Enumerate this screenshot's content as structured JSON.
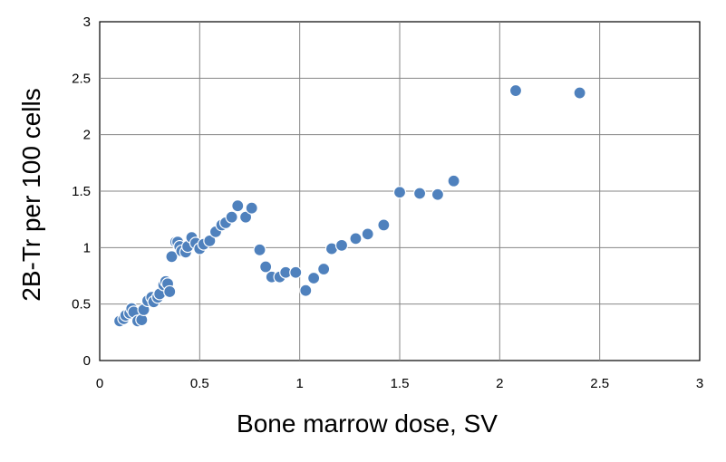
{
  "chart_data": {
    "type": "scatter",
    "title": "",
    "xlabel": "Bone marrow dose, SV",
    "ylabel": "2B-Tr per 100 cells",
    "xlim": [
      0,
      3
    ],
    "ylim": [
      0,
      3
    ],
    "x_ticks": [
      "0",
      "0.5",
      "1",
      "1.5",
      "2",
      "2.5",
      "3"
    ],
    "y_ticks": [
      "0",
      "0.5",
      "1",
      "1.5",
      "2",
      "2.5",
      "3"
    ],
    "grid": true,
    "legend": "none",
    "marker_color": "#4F81BD",
    "marker_edge_color": "#ffffff",
    "series": [
      {
        "points": [
          [
            0.1,
            0.35
          ],
          [
            0.12,
            0.37
          ],
          [
            0.13,
            0.4
          ],
          [
            0.15,
            0.42
          ],
          [
            0.16,
            0.46
          ],
          [
            0.17,
            0.43
          ],
          [
            0.19,
            0.35
          ],
          [
            0.21,
            0.36
          ],
          [
            0.22,
            0.45
          ],
          [
            0.24,
            0.53
          ],
          [
            0.26,
            0.56
          ],
          [
            0.27,
            0.52
          ],
          [
            0.29,
            0.56
          ],
          [
            0.3,
            0.59
          ],
          [
            0.32,
            0.67
          ],
          [
            0.33,
            0.7
          ],
          [
            0.34,
            0.68
          ],
          [
            0.35,
            0.61
          ],
          [
            0.36,
            0.92
          ],
          [
            0.38,
            1.05
          ],
          [
            0.39,
            1.05
          ],
          [
            0.4,
            1.01
          ],
          [
            0.41,
            0.97
          ],
          [
            0.43,
            0.96
          ],
          [
            0.44,
            1.01
          ],
          [
            0.46,
            1.09
          ],
          [
            0.48,
            1.04
          ],
          [
            0.5,
            0.99
          ],
          [
            0.52,
            1.03
          ],
          [
            0.55,
            1.06
          ],
          [
            0.58,
            1.14
          ],
          [
            0.61,
            1.2
          ],
          [
            0.63,
            1.22
          ],
          [
            0.66,
            1.27
          ],
          [
            0.69,
            1.37
          ],
          [
            0.73,
            1.27
          ],
          [
            0.76,
            1.35
          ],
          [
            0.8,
            0.98
          ],
          [
            0.83,
            0.83
          ],
          [
            0.86,
            0.74
          ],
          [
            0.9,
            0.74
          ],
          [
            0.93,
            0.78
          ],
          [
            0.98,
            0.78
          ],
          [
            1.03,
            0.62
          ],
          [
            1.07,
            0.73
          ],
          [
            1.12,
            0.81
          ],
          [
            1.16,
            0.99
          ],
          [
            1.21,
            1.02
          ],
          [
            1.28,
            1.08
          ],
          [
            1.34,
            1.12
          ],
          [
            1.42,
            1.2
          ],
          [
            1.5,
            1.49
          ],
          [
            1.6,
            1.48
          ],
          [
            1.69,
            1.47
          ],
          [
            1.77,
            1.59
          ],
          [
            2.08,
            2.39
          ],
          [
            2.4,
            2.37
          ]
        ]
      }
    ]
  }
}
